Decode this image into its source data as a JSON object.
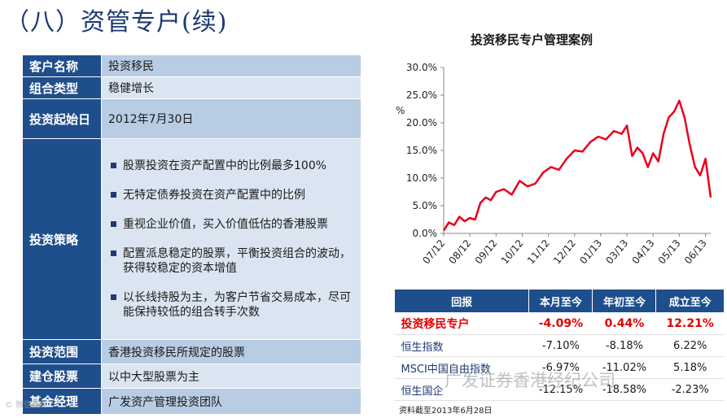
{
  "title": "（八）资管专户(续)",
  "info_rows": [
    {
      "label": "客户名称",
      "value": "投资移民"
    },
    {
      "label": "组合类型",
      "value": "稳健增长"
    },
    {
      "label": "投资起始日",
      "value": "2012年7月30日"
    }
  ],
  "strategy": {
    "label": "投资策略",
    "items": [
      "股票投资在资产配置中的比例最多100%",
      "无特定债券投资在资产配置中的比例",
      "重视企业价值，买入价值低估的香港股票",
      "配置派息稳定的股票，平衡投资组合的波动，获得较稳定的资本增值",
      "以长线持股为主，为客户节省交易成本，尽可能保持较低的组合转手次数"
    ]
  },
  "info_rows_after": [
    {
      "label": "投资范围",
      "value": "香港投资移民所规定的股票"
    },
    {
      "label": "建仓股票",
      "value": "以中大型股票为主"
    },
    {
      "label": "基金经理",
      "value": "广发资产管理投资团队"
    }
  ],
  "chart_data": {
    "type": "line",
    "title": "投资移民专户管理案例",
    "ylabel": "%",
    "ylim": [
      0,
      30
    ],
    "y_ticks": [
      "0.0%",
      "5.0%",
      "10.0%",
      "15.0%",
      "20.0%",
      "25.0%",
      "30.0%"
    ],
    "x_ticks": [
      "07/12",
      "08/12",
      "09/12",
      "10/12",
      "11/12",
      "12/12",
      "01/13",
      "03/13",
      "04/13",
      "05/13",
      "06/13"
    ],
    "grid": false,
    "line_color": "#e8001c",
    "series": [
      {
        "x": [
          0,
          0.2,
          0.4,
          0.6,
          0.8,
          1.0,
          1.2,
          1.4,
          1.6,
          1.8,
          2.0,
          2.3,
          2.6,
          2.9,
          3.2,
          3.5,
          3.8,
          4.1,
          4.4,
          4.7,
          5.0,
          5.3,
          5.6,
          5.9,
          6.2,
          6.5,
          6.8,
          7.0,
          7.2,
          7.4,
          7.6,
          7.8,
          8.0,
          8.2,
          8.4,
          8.6,
          8.8,
          9.0,
          9.1,
          9.2,
          9.4,
          9.6,
          9.8,
          10.0,
          10.2
        ],
        "values": [
          0.5,
          2.0,
          1.5,
          3.0,
          2.2,
          2.8,
          2.5,
          5.5,
          6.5,
          6.0,
          7.5,
          8.0,
          7.0,
          9.5,
          8.5,
          9.0,
          11.0,
          12.0,
          11.5,
          13.5,
          15.0,
          14.8,
          16.5,
          17.5,
          17.0,
          18.5,
          18.0,
          19.5,
          14.0,
          15.5,
          14.5,
          12.0,
          14.5,
          13.0,
          18.0,
          21.0,
          22.0,
          24.0,
          22.5,
          21.0,
          16.0,
          12.0,
          10.5,
          13.5,
          6.5
        ]
      }
    ]
  },
  "performance": {
    "headers": [
      "回报",
      "本月至今",
      "年初至今",
      "成立至今"
    ],
    "rows": [
      {
        "name": "投资移民专户",
        "m": "-4.09%",
        "y": "0.44%",
        "i": "12.21%"
      },
      {
        "name": "恒生指数",
        "m": "-7.10%",
        "y": "-8.18%",
        "i": "6.22%"
      },
      {
        "name": "MSCI中国自由指数",
        "m": "-6.97%",
        "y": "-11.02%",
        "i": "5.18%"
      },
      {
        "name": "恒生国企",
        "m": "-12.15%",
        "y": "-18.58%",
        "i": "-2.23%"
      }
    ]
  },
  "note": "资料截至2013年6月28日",
  "watermark": "广发证券香港经纪公司",
  "watermark_small": "© 微信图片"
}
